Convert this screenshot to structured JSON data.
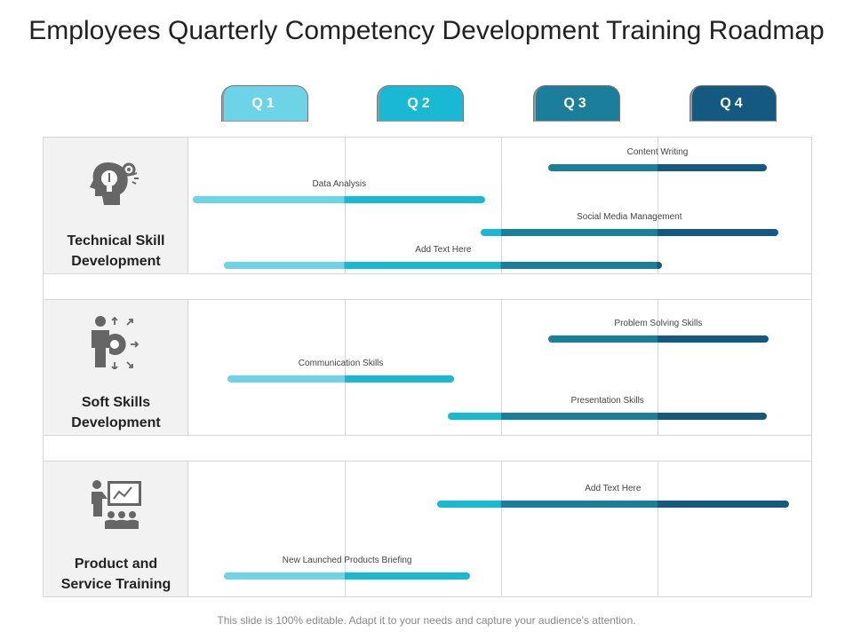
{
  "title": "Employees Quarterly Competency Development Training Roadmap",
  "quarters": [
    {
      "label": "Q1",
      "color": "#6dd3e6"
    },
    {
      "label": "Q2",
      "color": "#19b9d4"
    },
    {
      "label": "Q3",
      "color": "#1b7f9c"
    },
    {
      "label": "Q4",
      "color": "#145a80"
    }
  ],
  "rows": [
    {
      "title_line1": "Technical Skill",
      "title_line2": "Development",
      "icon": "idea-head-gear-icon",
      "bars": [
        {
          "label": "Content Writing",
          "start": 2.3,
          "end": 3.7
        },
        {
          "label": "Data Analysis",
          "start": 0.03,
          "end": 1.9
        },
        {
          "label": "Social Media Management",
          "start": 1.87,
          "end": 3.77
        },
        {
          "label": "Add Text Here",
          "start": 0.23,
          "end": 3.03
        }
      ]
    },
    {
      "title_line1": "Soft Skills",
      "title_line2": "Development",
      "icon": "businessman-target-icon",
      "bars": [
        {
          "label": "Problem Solving Skills",
          "start": 2.3,
          "end": 3.71
        },
        {
          "label": "Communication Skills",
          "start": 0.25,
          "end": 1.7
        },
        {
          "label": "Presentation Skills",
          "start": 1.66,
          "end": 3.7
        }
      ]
    },
    {
      "title_line1": "Product and",
      "title_line2": "Service Training",
      "icon": "presentation-audience-icon",
      "bars": [
        {
          "label": "Add Text Here",
          "start": 1.59,
          "end": 3.84
        },
        {
          "label": "New Launched Products Briefing",
          "start": 0.23,
          "end": 1.8
        }
      ]
    }
  ],
  "footer": "This slide is 100% editable. Adapt it to your needs and capture your audience's attention."
}
